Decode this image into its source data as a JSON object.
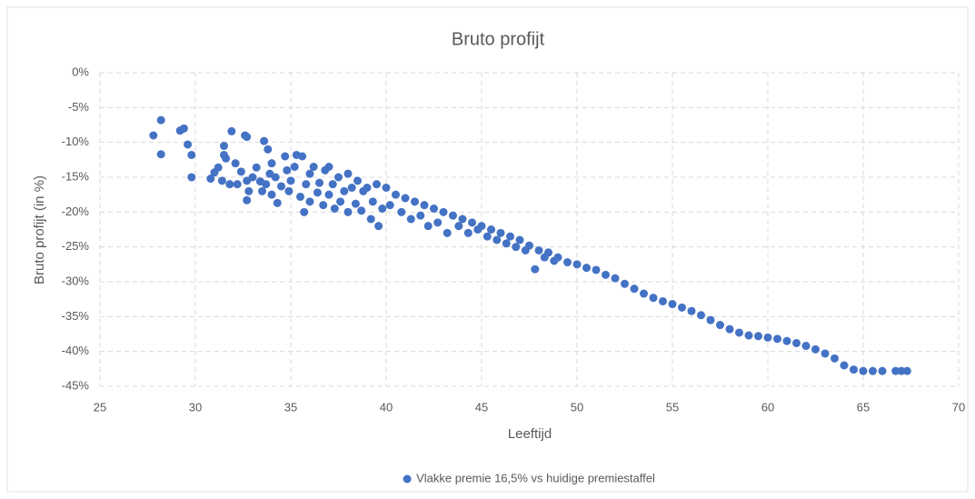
{
  "chart_data": {
    "type": "scatter",
    "title": "Bruto profijt",
    "x_label": "Leeftijd",
    "y_label": "Bruto profijt (in %)",
    "xlim": [
      25,
      70
    ],
    "xticks": [
      25,
      30,
      35,
      40,
      45,
      50,
      55,
      60,
      65,
      70
    ],
    "ylim": [
      -45,
      0
    ],
    "yticks": [
      {
        "value": 0,
        "label": "0%"
      },
      {
        "value": -5,
        "label": "-5%"
      },
      {
        "value": -10,
        "label": "-10%"
      },
      {
        "value": -15,
        "label": "-15%"
      },
      {
        "value": -20,
        "label": "-20%"
      },
      {
        "value": -25,
        "label": "-25%"
      },
      {
        "value": -30,
        "label": "-30%"
      },
      {
        "value": -35,
        "label": "-35%"
      },
      {
        "value": -40,
        "label": "-40%"
      },
      {
        "value": -45,
        "label": "-45%"
      }
    ],
    "grid": true,
    "legend": "bottom",
    "series": [
      {
        "name": "Vlakke premie 16,5% vs huidige premiestaffel",
        "color": "#4472c4",
        "x": [
          27.8,
          28.2,
          28.2,
          29.2,
          29.4,
          29.6,
          29.8,
          29.8,
          30.8,
          31,
          31.2,
          31.4,
          31.5,
          31.5,
          31.6,
          31.8,
          31.9,
          32.1,
          32.2,
          32.4,
          32.6,
          32.7,
          32.7,
          32.7,
          32.8,
          33,
          33.2,
          33.4,
          33.5,
          33.6,
          33.7,
          33.8,
          33.9,
          34,
          34,
          34.2,
          34.3,
          34.5,
          34.7,
          34.8,
          34.9,
          35,
          35.2,
          35.3,
          35.5,
          35.6,
          35.7,
          35.8,
          36,
          36,
          36.2,
          36.4,
          36.5,
          36.7,
          36.8,
          37,
          37,
          37.2,
          37.3,
          37.5,
          37.6,
          37.8,
          38,
          38,
          38.2,
          38.4,
          38.5,
          38.7,
          38.8,
          39,
          39.2,
          39.3,
          39.5,
          39.6,
          39.8,
          40,
          40.2,
          40.5,
          40.8,
          41,
          41.3,
          41.5,
          41.8,
          42,
          42.2,
          42.5,
          42.7,
          43,
          43.2,
          43.5,
          43.8,
          44,
          44.3,
          44.5,
          44.8,
          45,
          45.3,
          45.5,
          45.8,
          46,
          46.3,
          46.5,
          46.8,
          47,
          47.3,
          47.5,
          47.8,
          48,
          48.3,
          48.5,
          48.8,
          49,
          49.5,
          50,
          50.5,
          51,
          51.5,
          52,
          52.5,
          53,
          53.5,
          54,
          54.5,
          55,
          55.5,
          56,
          56.5,
          57,
          57.5,
          58,
          58.5,
          59,
          59.5,
          60,
          60.5,
          61,
          61.5,
          62,
          62.5,
          63,
          63.5,
          64,
          64.5,
          65,
          65.5,
          66,
          66.7,
          67,
          67.3
        ],
        "values": [
          -9,
          -6.8,
          -11.7,
          -8.3,
          -8,
          -10.3,
          -11.8,
          -15,
          -15.2,
          -14.3,
          -13.6,
          -15.5,
          -10.5,
          -11.8,
          -12.3,
          -16,
          -8.4,
          -13,
          -16,
          -14.2,
          -9,
          -9.2,
          -15.5,
          -18.3,
          -17,
          -15,
          -13.6,
          -15.6,
          -17,
          -9.8,
          -16,
          -11,
          -14.5,
          -13,
          -17.5,
          -15,
          -18.7,
          -16.3,
          -12,
          -14,
          -17,
          -15.5,
          -13.5,
          -11.8,
          -17.8,
          -12,
          -20,
          -16,
          -14.5,
          -18.5,
          -13.5,
          -17.2,
          -15.8,
          -19,
          -14,
          -13.5,
          -17.5,
          -16,
          -19.5,
          -15,
          -18.5,
          -17,
          -14.5,
          -20,
          -16.5,
          -18.8,
          -15.5,
          -19.8,
          -17,
          -16.5,
          -21,
          -18.5,
          -16,
          -22,
          -19.5,
          -16.5,
          -19,
          -17.5,
          -20,
          -18,
          -21,
          -18.5,
          -20.5,
          -19,
          -22,
          -19.5,
          -21.5,
          -20,
          -23,
          -20.5,
          -22,
          -21,
          -23,
          -21.5,
          -22.5,
          -22,
          -23.5,
          -22.5,
          -24,
          -23,
          -24.5,
          -23.5,
          -25,
          -24,
          -25.5,
          -24.8,
          -28.2,
          -25.5,
          -26.5,
          -25.8,
          -27,
          -26.5,
          -27.2,
          -27.5,
          -28,
          -28.3,
          -29,
          -29.5,
          -30.3,
          -31,
          -31.7,
          -32.3,
          -32.8,
          -33.2,
          -33.7,
          -34.2,
          -34.8,
          -35.5,
          -36.2,
          -36.8,
          -37.3,
          -37.7,
          -37.8,
          -38,
          -38.2,
          -38.5,
          -38.8,
          -39.2,
          -39.7,
          -40.3,
          -41,
          -42,
          -42.6,
          -42.8,
          -42.8,
          -42.8,
          -42.8,
          -42.8,
          -42.8
        ]
      }
    ]
  }
}
